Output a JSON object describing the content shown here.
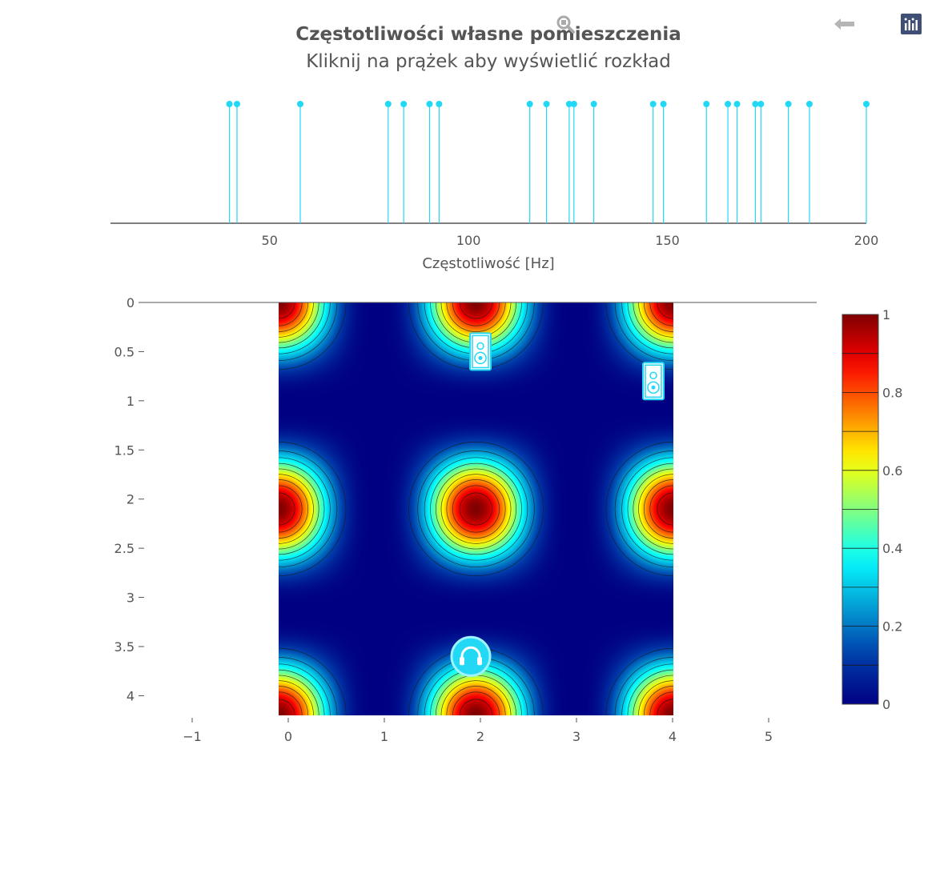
{
  "header": {
    "title": "Częstotliwości własne pomieszczenia",
    "subtitle": "Kliknij na prążek aby wyświetlić rozkład"
  },
  "toolbar": {
    "zoom_icon": "zoom-icon",
    "back_icon": "back-arrow-icon",
    "logo_icon": "plotly-logo-icon"
  },
  "colors": {
    "stem": "#22d8f4",
    "axis": "#555555",
    "text": "#555555"
  },
  "chart_data": [
    {
      "type": "stem",
      "xlabel": "Częstotliwość [Hz]",
      "xlim": [
        10,
        200
      ],
      "xticks": [
        "50",
        "100",
        "150",
        "200"
      ],
      "xtick_values": [
        50,
        100,
        150,
        200
      ],
      "values": [
        39.9,
        41.8,
        57.7,
        79.8,
        83.7,
        90.2,
        92.6,
        115.4,
        119.6,
        125.3,
        126.5,
        131.5,
        146.4,
        149.0,
        159.8,
        165.2,
        167.5,
        172.1,
        173.5,
        180.4,
        185.7,
        200.0
      ]
    },
    {
      "type": "heatmap",
      "x_range": [
        0,
        4
      ],
      "y_range": [
        0,
        4.2
      ],
      "xlim": [
        -1.5,
        5.5
      ],
      "ylim": [
        4.2,
        0
      ],
      "xticks": [
        "−1",
        "0",
        "1",
        "2",
        "3",
        "4",
        "5"
      ],
      "xtick_values": [
        -1,
        0,
        1,
        2,
        3,
        4,
        5
      ],
      "yticks": [
        "0",
        "0.5",
        "1",
        "1.5",
        "2",
        "2.5",
        "3",
        "3.5",
        "4"
      ],
      "ytick_values": [
        0,
        0.5,
        1,
        1.5,
        2,
        2.5,
        3,
        3.5,
        4
      ],
      "mode_x": 2,
      "mode_y": 2,
      "colorscale": "jet",
      "colorbar": {
        "range": [
          0,
          1
        ],
        "ticks": [
          "0",
          "0.2",
          "0.4",
          "0.6",
          "0.8",
          "1"
        ],
        "tick_values": [
          0,
          0.2,
          0.4,
          0.6,
          0.8,
          1
        ]
      },
      "contour_levels": [
        0.1,
        0.2,
        0.3,
        0.4,
        0.5,
        0.6,
        0.7,
        0.8,
        0.9
      ],
      "markers": [
        {
          "kind": "speaker",
          "icon": "speaker-icon",
          "x": 2.0,
          "y": 0.5
        },
        {
          "kind": "speaker",
          "icon": "speaker-icon",
          "x": 3.8,
          "y": 0.8
        },
        {
          "kind": "listener",
          "icon": "headphones-icon",
          "x": 1.9,
          "y": 3.6
        }
      ]
    }
  ]
}
